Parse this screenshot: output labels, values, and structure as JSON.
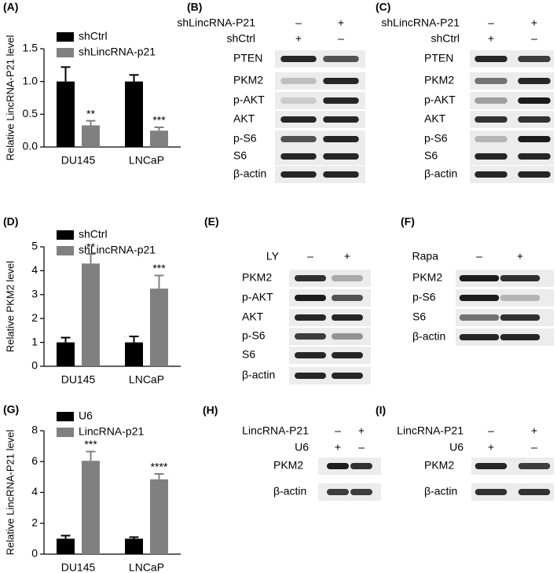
{
  "chart_data": [
    {
      "type": "bar",
      "panel": "(A)",
      "ylabel": "Relative LincRNA-P21 level",
      "categories": [
        "DU145",
        "LNCaP"
      ],
      "series": [
        {
          "name": "shCtrl",
          "color": "#000000",
          "values": [
            1.0,
            1.0
          ],
          "errors": [
            0.22,
            0.1
          ]
        },
        {
          "name": "shLincRNA-p21",
          "color": "#808080",
          "values": [
            0.33,
            0.25
          ],
          "errors": [
            0.07,
            0.05
          ],
          "significance": [
            "**",
            "***"
          ]
        }
      ],
      "ylim": [
        0,
        1.5
      ],
      "yticks": [
        {
          "value": 0,
          "label": "0.0"
        },
        0.5,
        {
          "value": 1,
          "label": "1.0"
        },
        1.5
      ]
    },
    {
      "type": "bar",
      "panel": "(D)",
      "ylabel": "Relative PKM2 level",
      "categories": [
        "DU145",
        "LNCaP"
      ],
      "series": [
        {
          "name": "shCtrl",
          "color": "#000000",
          "values": [
            1.0,
            1.0
          ],
          "errors": [
            0.2,
            0.25
          ]
        },
        {
          "name": "shLincRNA-p21",
          "color": "#808080",
          "values": [
            4.3,
            3.25
          ],
          "errors": [
            0.4,
            0.55
          ],
          "significance": [
            "**",
            "***"
          ]
        }
      ],
      "ylim": [
        0,
        5
      ],
      "yticks": [
        0,
        1,
        2,
        3,
        4,
        5
      ]
    },
    {
      "type": "bar",
      "panel": "(G)",
      "ylabel": "Relative LincRNA-P21 level",
      "categories": [
        "DU145",
        "LNCaP"
      ],
      "series": [
        {
          "name": "U6",
          "color": "#000000",
          "values": [
            1.0,
            1.0
          ],
          "errors": [
            0.2,
            0.1
          ]
        },
        {
          "name": "LincRNA-p21",
          "color": "#808080",
          "values": [
            6.05,
            4.85
          ],
          "errors": [
            0.6,
            0.35
          ],
          "significance": [
            "***",
            "****"
          ]
        }
      ],
      "ylim": [
        0,
        8
      ],
      "yticks": [
        0,
        2,
        4,
        6,
        8
      ]
    }
  ],
  "blots": [
    {
      "panel": "(B)",
      "conditions": [
        {
          "name": "shLincRNA-P21",
          "signs": [
            "–",
            "+"
          ]
        },
        {
          "name": "shCtrl",
          "signs": [
            "+",
            "–"
          ]
        }
      ],
      "rows": [
        "PTEN",
        "PKM2",
        "p-AKT",
        "AKT",
        "p-S6",
        "S6",
        "β-actin"
      ]
    },
    {
      "panel": "(C)",
      "conditions": [
        {
          "name": "shLincRNA-P21",
          "signs": [
            "–",
            "+"
          ]
        },
        {
          "name": "shCtrl",
          "signs": [
            "+",
            "–"
          ]
        }
      ],
      "rows": [
        "PTEN",
        "PKM2",
        "p-AKT",
        "AKT",
        "p-S6",
        "S6",
        "β-actin"
      ]
    },
    {
      "panel": "(E)",
      "conditions": [
        {
          "name": "LY",
          "signs": [
            "–",
            "+"
          ]
        }
      ],
      "rows": [
        "PKM2",
        "p-AKT",
        "AKT",
        "p-S6",
        "S6",
        "β-actin"
      ]
    },
    {
      "panel": "(F)",
      "conditions": [
        {
          "name": "Rapa",
          "signs": [
            "–",
            "+"
          ]
        }
      ],
      "rows": [
        "PKM2",
        "p-S6",
        "S6",
        "β-actin"
      ]
    },
    {
      "panel": "(H)",
      "conditions": [
        {
          "name": "LincRNA-P21",
          "signs": [
            "–",
            "+"
          ]
        },
        {
          "name": "U6",
          "signs": [
            "+",
            "–"
          ]
        }
      ],
      "rows": [
        "PKM2",
        "β-actin"
      ]
    },
    {
      "panel": "(I)",
      "conditions": [
        {
          "name": "LincRNA-P21",
          "signs": [
            "–",
            "+"
          ]
        },
        {
          "name": "U6",
          "signs": [
            "+",
            "–"
          ]
        }
      ],
      "rows": [
        "PKM2",
        "β-actin"
      ]
    }
  ]
}
